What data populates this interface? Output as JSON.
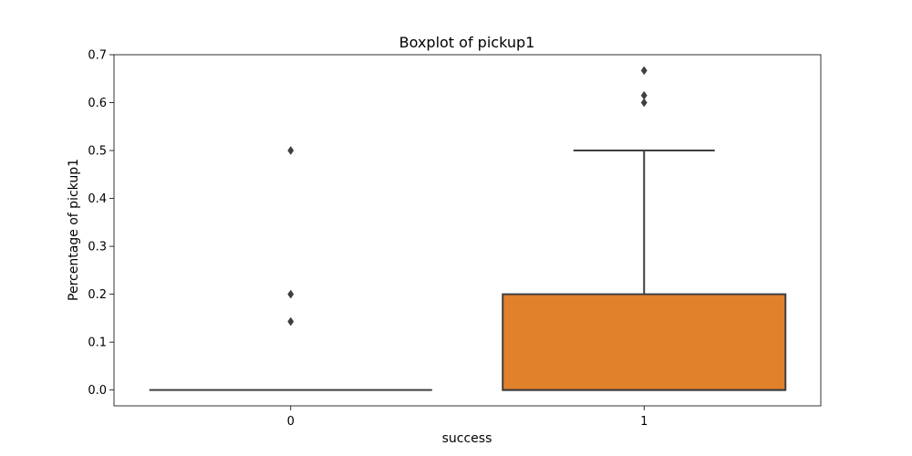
{
  "chart_data": {
    "type": "boxplot",
    "title": "Boxplot of pickup1",
    "xlabel": "success",
    "ylabel": "Percentage of pickup1",
    "categories": [
      "0",
      "1"
    ],
    "ylim": [
      -0.033,
      0.7
    ],
    "yticks": [
      0.0,
      0.1,
      0.2,
      0.3,
      0.4,
      0.5,
      0.6,
      0.7
    ],
    "ytick_labels": [
      "0.0",
      "0.1",
      "0.2",
      "0.3",
      "0.4",
      "0.5",
      "0.6",
      "0.7"
    ],
    "grid": false,
    "boxes": [
      {
        "category": "0",
        "color": "#3274a1",
        "min": 0.0,
        "q1": 0.0,
        "median": 0.0,
        "q3": 0.0,
        "max": 0.0,
        "outliers": [
          0.5,
          0.2,
          0.143
        ]
      },
      {
        "category": "1",
        "color": "#e1812c",
        "min": 0.0,
        "q1": 0.0,
        "median": 0.0,
        "q3": 0.2,
        "max": 0.5,
        "outliers": [
          0.667,
          0.615,
          0.6
        ]
      }
    ],
    "line_color": "#3f3f3f"
  }
}
